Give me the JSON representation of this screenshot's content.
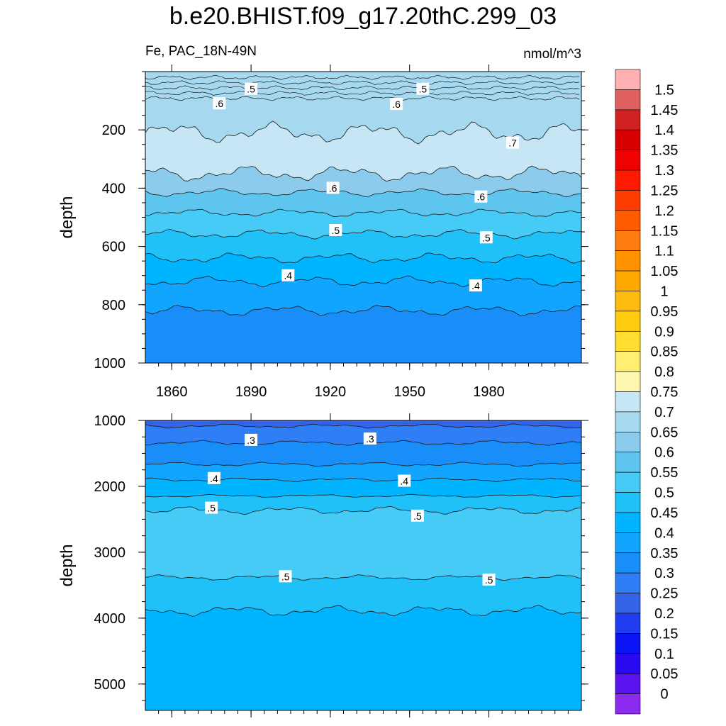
{
  "title": "b.e20.BHIST.f09_g17.20thC.299_03",
  "subtitle_left": "Fe, PAC_18N-49N",
  "units": "nmol/m^3",
  "colors": {
    "palette": [
      "#8c2bf0",
      "#5a14f0",
      "#2a0af0",
      "#0a14f5",
      "#1f3cf0",
      "#3563e6",
      "#2f7ef5",
      "#1a8ef8",
      "#12a5ff",
      "#00b4ff",
      "#20c0f8",
      "#45cbf5",
      "#5ec5ef",
      "#8ccbeb",
      "#a6d9ef",
      "#c6e6f5",
      "#fff6b0",
      "#ffee70",
      "#ffde30",
      "#ffcc10",
      "#ffba10",
      "#ffa800",
      "#ff9400",
      "#ff7c10",
      "#ff5c00",
      "#ff3c00",
      "#ff1a00",
      "#f00000",
      "#d80000",
      "#d02020",
      "#e06060",
      "#ffb0b0"
    ]
  },
  "colorbar": {
    "labels": [
      "1.5",
      "1.45",
      "1.4",
      "1.35",
      "1.3",
      "1.25",
      "1.2",
      "1.15",
      "1.1",
      "1.05",
      "1",
      "0.95",
      "0.9",
      "0.85",
      "0.8",
      "0.75",
      "0.7",
      "0.65",
      "0.6",
      "0.55",
      "0.5",
      "0.45",
      "0.4",
      "0.35",
      "0.3",
      "0.25",
      "0.2",
      "0.15",
      "0.1",
      "0.05",
      "0"
    ]
  },
  "chart_data": [
    {
      "type": "heatmap",
      "panel": "upper",
      "variable": "Fe",
      "region": "PAC_18N-49N",
      "units": "nmol/m^3",
      "xlabel": "",
      "ylabel": "depth",
      "xlim": [
        1850,
        2015
      ],
      "ylim": [
        1000,
        0
      ],
      "xticks": [
        1860,
        1890,
        1920,
        1950,
        1980
      ],
      "xtick_labels": [
        "1860",
        "1890",
        "1920",
        "1950",
        "1980"
      ],
      "yticks": [
        200,
        400,
        600,
        800,
        1000
      ],
      "ytick_labels": [
        "200",
        "400",
        "600",
        "800",
        "1000"
      ],
      "levels": [
        0.35,
        0.4,
        0.45,
        0.5,
        0.55,
        0.6,
        0.65,
        0.7
      ],
      "contour_depths": [
        {
          "value": 0.7,
          "depth_min": 170,
          "depth_max": 250
        },
        {
          "value": 0.65,
          "depth_min": 320,
          "depth_max": 380
        },
        {
          "value": 0.6,
          "depth_min": 400,
          "depth_max": 430
        },
        {
          "value": 0.55,
          "depth_min": 470,
          "depth_max": 500
        },
        {
          "value": 0.5,
          "depth_min": 540,
          "depth_max": 575
        },
        {
          "value": 0.45,
          "depth_min": 620,
          "depth_max": 660
        },
        {
          "value": 0.4,
          "depth_min": 700,
          "depth_max": 740
        },
        {
          "value": 0.35,
          "depth_min": 800,
          "depth_max": 840
        }
      ],
      "contour_labels": [
        {
          "text": ".5",
          "year": 1890,
          "depth": 60
        },
        {
          "text": ".6",
          "year": 1878,
          "depth": 110
        },
        {
          "text": ".6",
          "year": 1945,
          "depth": 112
        },
        {
          "text": ".5",
          "year": 1955,
          "depth": 60
        },
        {
          "text": ".7",
          "year": 1989,
          "depth": 245
        },
        {
          "text": ".6",
          "year": 1921,
          "depth": 400
        },
        {
          "text": ".6",
          "year": 1977,
          "depth": 430
        },
        {
          "text": ".5",
          "year": 1922,
          "depth": 545
        },
        {
          "text": ".5",
          "year": 1979,
          "depth": 570
        },
        {
          "text": ".4",
          "year": 1904,
          "depth": 700
        },
        {
          "text": ".4",
          "year": 1975,
          "depth": 735
        }
      ]
    },
    {
      "type": "heatmap",
      "panel": "lower",
      "variable": "Fe",
      "units": "nmol/m^3",
      "xlabel": "",
      "ylabel": "depth",
      "xlim": [
        1850,
        2015
      ],
      "ylim": [
        5400,
        1000
      ],
      "yticks": [
        1000,
        2000,
        3000,
        4000,
        5000
      ],
      "ytick_labels": [
        "1000",
        "2000",
        "3000",
        "4000",
        "5000"
      ],
      "levels": [
        0.25,
        0.3,
        0.35,
        0.4,
        0.45,
        0.5
      ],
      "contour_depths": [
        {
          "value": 0.25,
          "depth_min": 1050,
          "depth_max": 1120
        },
        {
          "value": 0.3,
          "depth_min": 1300,
          "depth_max": 1380
        },
        {
          "value": 0.35,
          "depth_min": 1630,
          "depth_max": 1700
        },
        {
          "value": 0.4,
          "depth_min": 1870,
          "depth_max": 1930
        },
        {
          "value": 0.45,
          "depth_min": 2120,
          "depth_max": 2170
        },
        {
          "value": 0.5,
          "depth_min": 2300,
          "depth_max": 2430
        },
        {
          "value": 0.5,
          "depth_min": 3340,
          "depth_max": 3430
        },
        {
          "value": 0.45,
          "depth_min": 3800,
          "depth_max": 3980
        }
      ],
      "contour_labels": [
        {
          "text": ".3",
          "year": 1890,
          "depth": 1300
        },
        {
          "text": ".3",
          "year": 1935,
          "depth": 1280
        },
        {
          "text": ".4",
          "year": 1876,
          "depth": 1880
        },
        {
          "text": ".4",
          "year": 1948,
          "depth": 1920
        },
        {
          "text": ".5",
          "year": 1875,
          "depth": 2330
        },
        {
          "text": ".5",
          "year": 1953,
          "depth": 2450
        },
        {
          "text": ".5",
          "year": 1903,
          "depth": 3370
        },
        {
          "text": ".5",
          "year": 1980,
          "depth": 3420
        }
      ]
    }
  ]
}
